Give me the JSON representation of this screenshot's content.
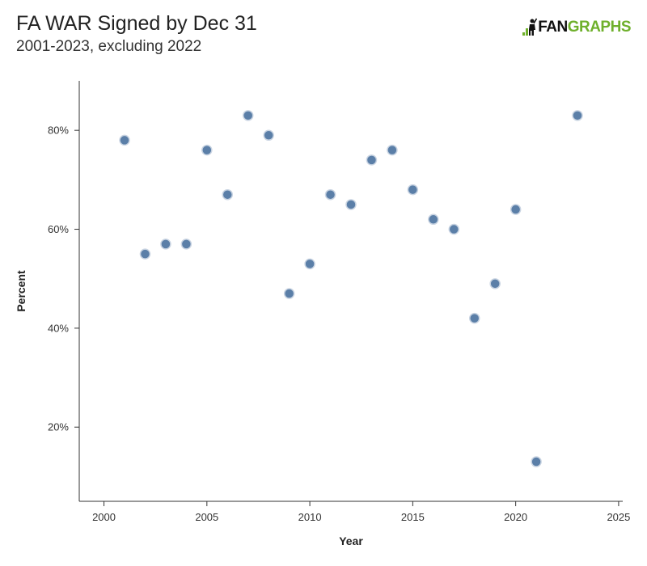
{
  "header": {
    "title": "FA WAR Signed by Dec 31",
    "subtitle": "2001-2023, excluding 2022"
  },
  "logo": {
    "text_fan": "FAN",
    "text_graphs": "GRAPHS",
    "color_fan": "#111111",
    "color_graphs": "#6fb02c"
  },
  "colors": {
    "point_fill": "#5b7fa8",
    "axis": "#333333"
  },
  "chart_data": {
    "type": "scatter",
    "title": "FA WAR Signed by Dec 31",
    "subtitle": "2001-2023, excluding 2022",
    "xlabel": "Year",
    "ylabel": "Percent",
    "xlim": [
      1998.8,
      2025.2
    ],
    "ylim": [
      5,
      90
    ],
    "x_ticks": [
      2000,
      2005,
      2010,
      2015,
      2020,
      2025
    ],
    "x_tick_labels": [
      "2000",
      "2005",
      "2010",
      "2015",
      "2020",
      "2025"
    ],
    "y_ticks": [
      20,
      40,
      60,
      80
    ],
    "y_tick_labels": [
      "20%",
      "40%",
      "60%",
      "80%"
    ],
    "grid": false,
    "legend": "none",
    "series": [
      {
        "x": [
          2001,
          2002,
          2003,
          2004,
          2005,
          2006,
          2007,
          2008,
          2009,
          2010,
          2011,
          2012,
          2013,
          2014,
          2015,
          2016,
          2017,
          2018,
          2019,
          2020,
          2021,
          2023
        ],
        "y": [
          78,
          55,
          57,
          57,
          76,
          67,
          83,
          79,
          47,
          53,
          67,
          65,
          74,
          76,
          68,
          62,
          60,
          42,
          49,
          64,
          13,
          83
        ]
      }
    ]
  }
}
